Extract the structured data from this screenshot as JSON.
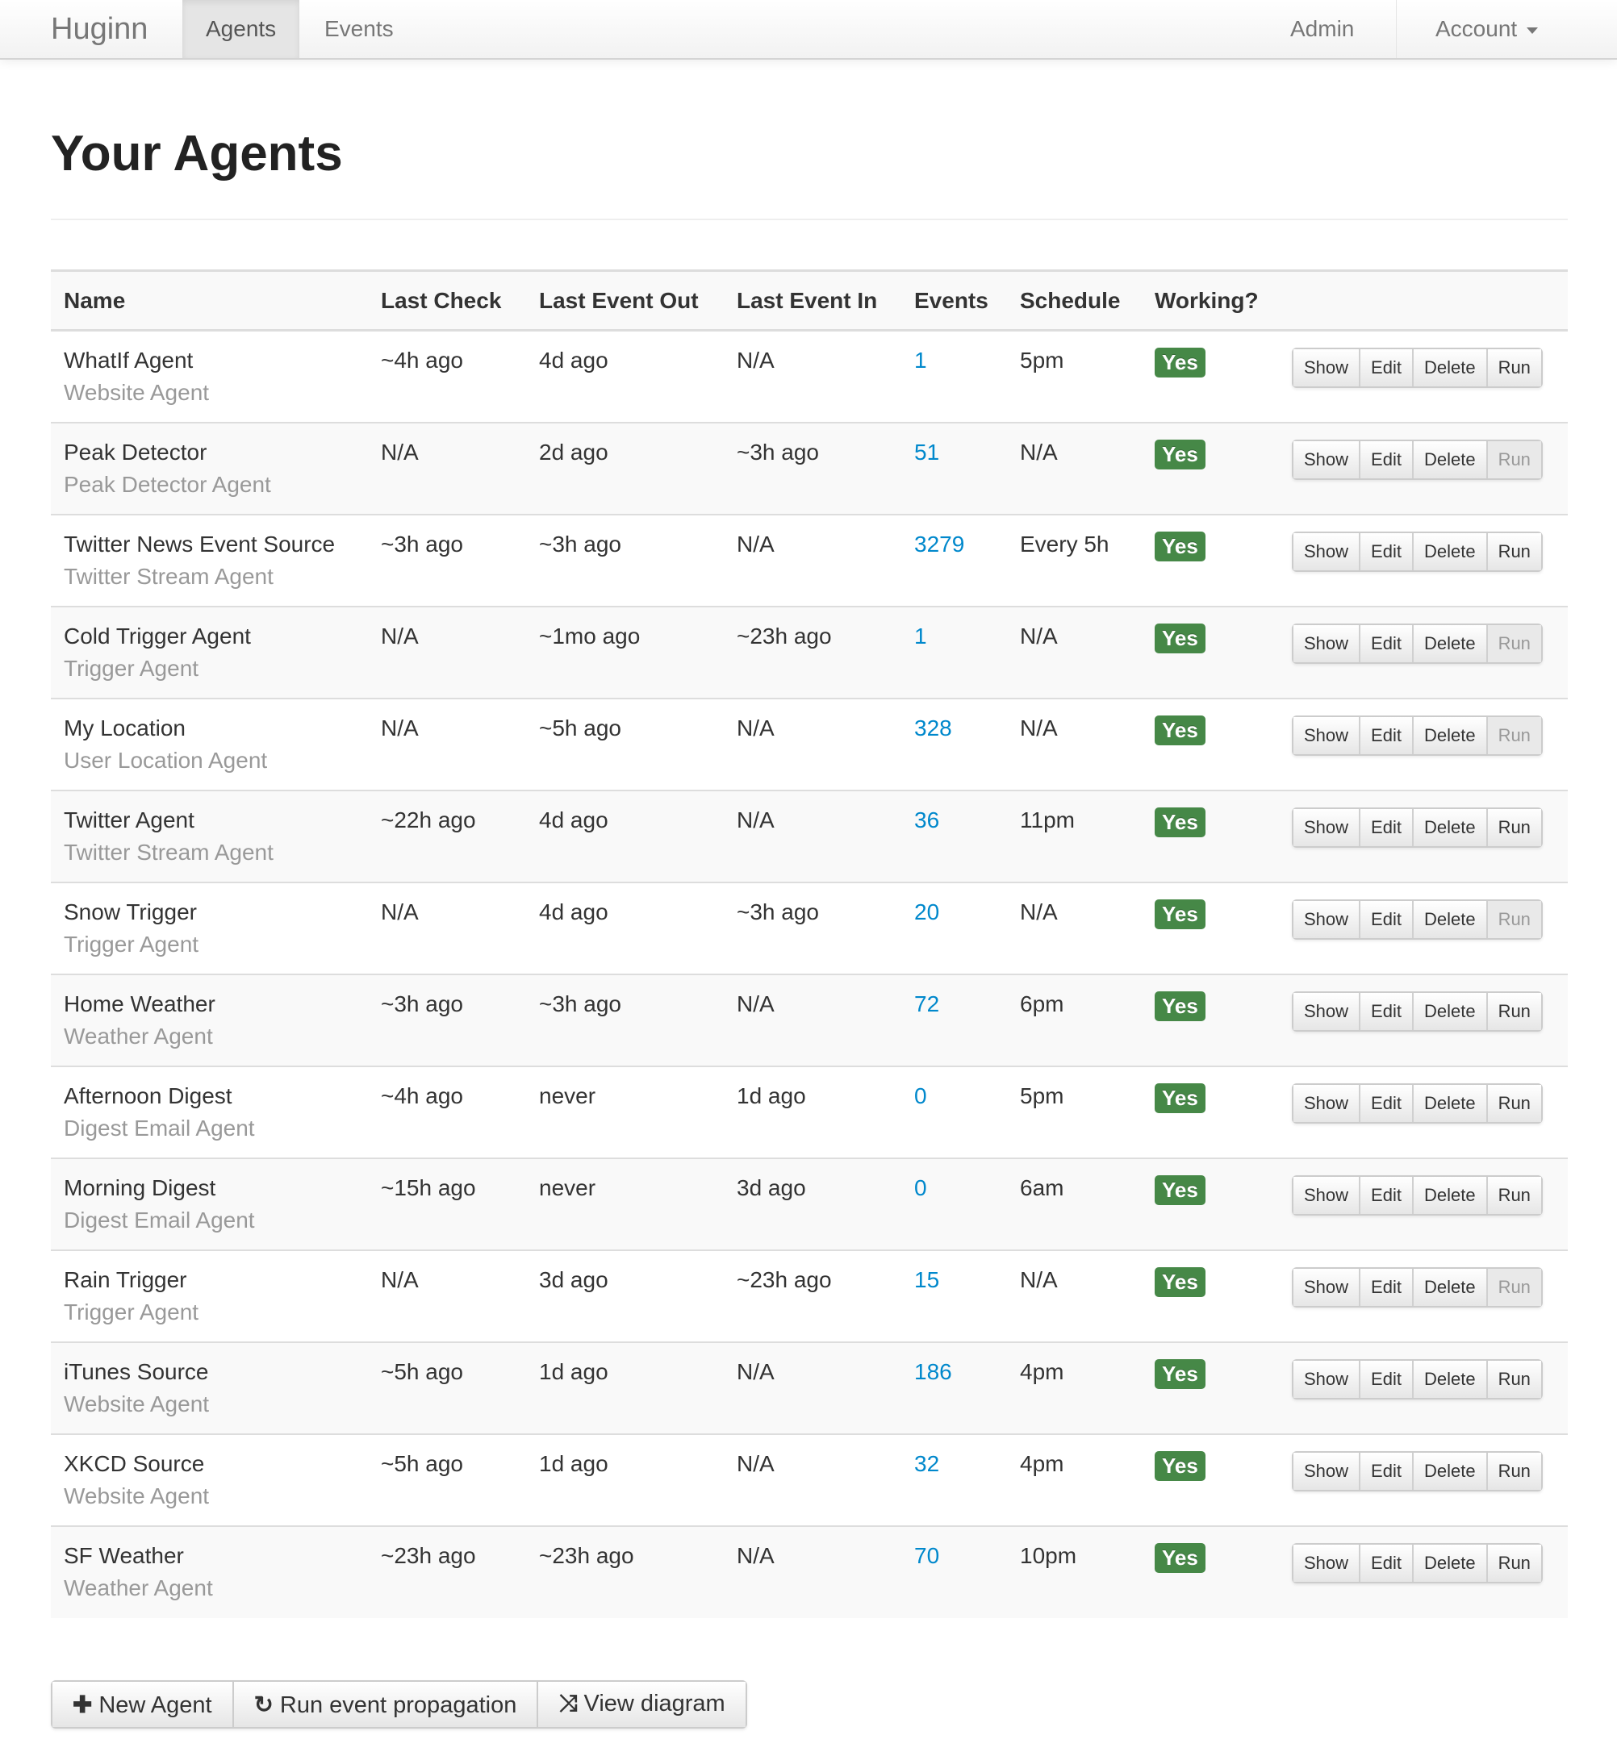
{
  "nav": {
    "brand": "Huginn",
    "items": [
      "Agents",
      "Events"
    ],
    "active": "Agents",
    "admin": "Admin",
    "account": "Account"
  },
  "page": {
    "title": "Your Agents"
  },
  "table": {
    "headers": [
      "Name",
      "Last Check",
      "Last Event Out",
      "Last Event In",
      "Events",
      "Schedule",
      "Working?"
    ],
    "actions": [
      "Show",
      "Edit",
      "Delete",
      "Run"
    ],
    "rows": [
      {
        "name": "WhatIf Agent",
        "type": "Website Agent",
        "last_check": "~4h ago",
        "last_out": "4d ago",
        "last_in": "N/A",
        "events": "1",
        "schedule": "5pm",
        "working": "Yes",
        "run_enabled": true
      },
      {
        "name": "Peak Detector",
        "type": "Peak Detector Agent",
        "last_check": "N/A",
        "last_out": "2d ago",
        "last_in": "~3h ago",
        "events": "51",
        "schedule": "N/A",
        "working": "Yes",
        "run_enabled": false
      },
      {
        "name": "Twitter News Event Source",
        "type": "Twitter Stream Agent",
        "last_check": "~3h ago",
        "last_out": "~3h ago",
        "last_in": "N/A",
        "events": "3279",
        "schedule": "Every 5h",
        "working": "Yes",
        "run_enabled": true
      },
      {
        "name": "Cold Trigger Agent",
        "type": "Trigger Agent",
        "last_check": "N/A",
        "last_out": "~1mo ago",
        "last_in": "~23h ago",
        "events": "1",
        "schedule": "N/A",
        "working": "Yes",
        "run_enabled": false
      },
      {
        "name": "My Location",
        "type": "User Location Agent",
        "last_check": "N/A",
        "last_out": "~5h ago",
        "last_in": "N/A",
        "events": "328",
        "schedule": "N/A",
        "working": "Yes",
        "run_enabled": false
      },
      {
        "name": "Twitter Agent",
        "type": "Twitter Stream Agent",
        "last_check": "~22h ago",
        "last_out": "4d ago",
        "last_in": "N/A",
        "events": "36",
        "schedule": "11pm",
        "working": "Yes",
        "run_enabled": true
      },
      {
        "name": "Snow Trigger",
        "type": "Trigger Agent",
        "last_check": "N/A",
        "last_out": "4d ago",
        "last_in": "~3h ago",
        "events": "20",
        "schedule": "N/A",
        "working": "Yes",
        "run_enabled": false
      },
      {
        "name": "Home Weather",
        "type": "Weather Agent",
        "last_check": "~3h ago",
        "last_out": "~3h ago",
        "last_in": "N/A",
        "events": "72",
        "schedule": "6pm",
        "working": "Yes",
        "run_enabled": true
      },
      {
        "name": "Afternoon Digest",
        "type": "Digest Email Agent",
        "last_check": "~4h ago",
        "last_out": "never",
        "last_in": "1d ago",
        "events": "0",
        "schedule": "5pm",
        "working": "Yes",
        "run_enabled": true
      },
      {
        "name": "Morning Digest",
        "type": "Digest Email Agent",
        "last_check": "~15h ago",
        "last_out": "never",
        "last_in": "3d ago",
        "events": "0",
        "schedule": "6am",
        "working": "Yes",
        "run_enabled": true
      },
      {
        "name": "Rain Trigger",
        "type": "Trigger Agent",
        "last_check": "N/A",
        "last_out": "3d ago",
        "last_in": "~23h ago",
        "events": "15",
        "schedule": "N/A",
        "working": "Yes",
        "run_enabled": false
      },
      {
        "name": "iTunes Source",
        "type": "Website Agent",
        "last_check": "~5h ago",
        "last_out": "1d ago",
        "last_in": "N/A",
        "events": "186",
        "schedule": "4pm",
        "working": "Yes",
        "run_enabled": true
      },
      {
        "name": "XKCD Source",
        "type": "Website Agent",
        "last_check": "~5h ago",
        "last_out": "1d ago",
        "last_in": "N/A",
        "events": "32",
        "schedule": "4pm",
        "working": "Yes",
        "run_enabled": true
      },
      {
        "name": "SF Weather",
        "type": "Weather Agent",
        "last_check": "~23h ago",
        "last_out": "~23h ago",
        "last_in": "N/A",
        "events": "70",
        "schedule": "10pm",
        "working": "Yes",
        "run_enabled": true
      }
    ]
  },
  "footer_buttons": [
    {
      "label": "New Agent",
      "icon": "plus-icon",
      "glyph": "✚"
    },
    {
      "label": "Run event propagation",
      "icon": "refresh-icon",
      "glyph": "↻"
    },
    {
      "label": "View diagram",
      "icon": "random-icon",
      "glyph": "⤨"
    }
  ],
  "colors": {
    "link": "#0088cc",
    "success": "#468847"
  }
}
